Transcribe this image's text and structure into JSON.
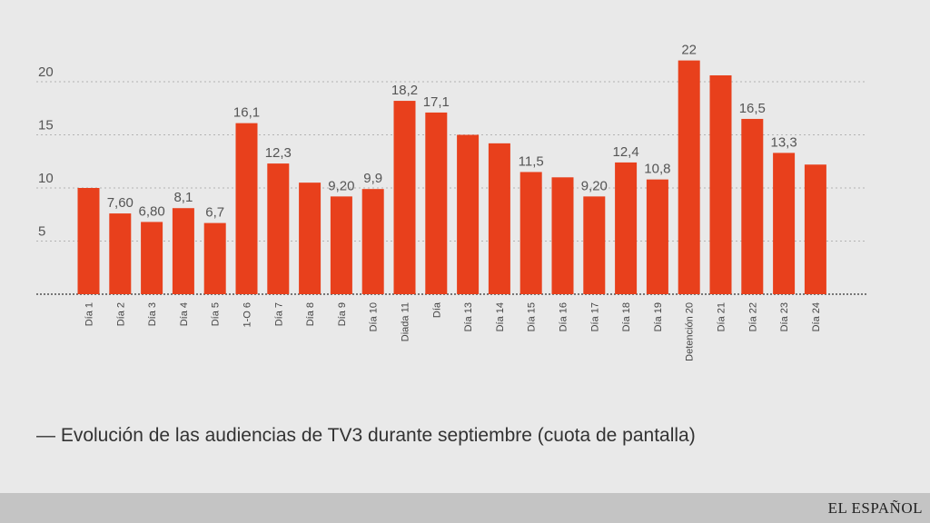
{
  "chart_data": {
    "type": "bar",
    "title": "",
    "xlabel": "",
    "ylabel": "",
    "ylim": [
      0,
      22
    ],
    "yticks": [
      5,
      10,
      15,
      20
    ],
    "bar_color": "#e8401c",
    "categories": [
      "Día 1",
      "Día 2",
      "Día 3",
      "Día 4",
      "Día 5",
      "1-O 6",
      "Día 7",
      "Día 8",
      "Día 9",
      "Día 10",
      "Diada 11",
      "Día",
      "Día 13",
      "Día 14",
      "Día 15",
      "Día 16",
      "Día 17",
      "Día 18",
      "Día 19",
      "Detención 20",
      "Día 21",
      "Día 22",
      "Día 23",
      "Día 24"
    ],
    "values": [
      10,
      7.6,
      6.8,
      8.1,
      6.7,
      16.1,
      12.3,
      10.5,
      9.2,
      9.9,
      18.2,
      17.1,
      15,
      14.2,
      11.5,
      11,
      9.2,
      12.4,
      10.8,
      22,
      20.6,
      16.5,
      13.3,
      12.2
    ],
    "data_labels": [
      "",
      "7,60",
      "6,80",
      "8,1",
      "6,7",
      "16,1",
      "12,3",
      "",
      "9,20",
      "9,9",
      "18,2",
      "17,1",
      "",
      "",
      "11,5",
      "",
      "9,20",
      "12,4",
      "10,8",
      "22",
      "",
      "16,5",
      "13,3",
      ""
    ]
  },
  "caption": "— Evolución de las audiencias de TV3 durante septiembre (cuota de pantalla)",
  "brand": "EL ESPAÑOL"
}
